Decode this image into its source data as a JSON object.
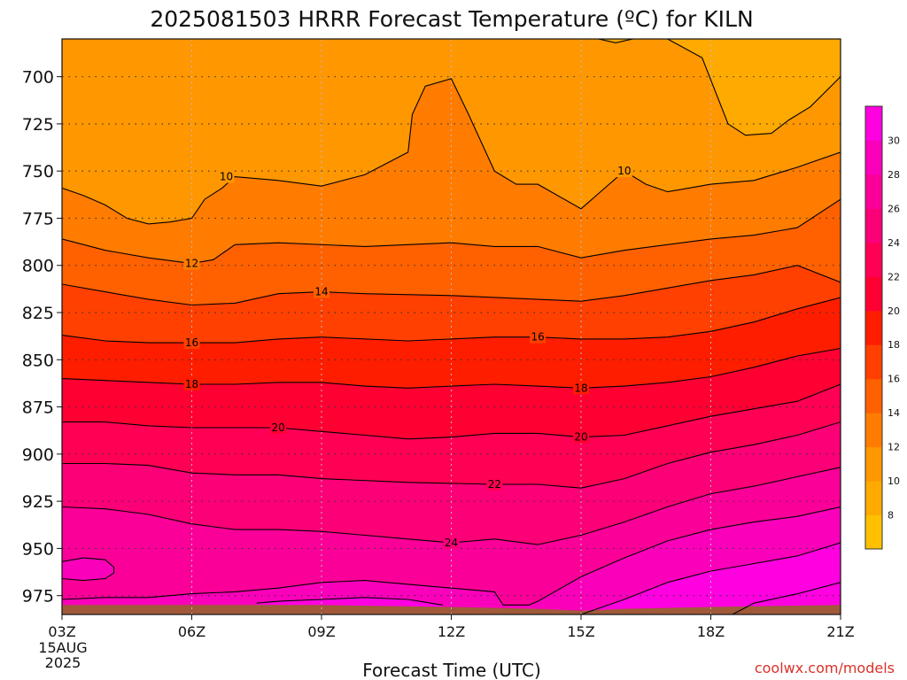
{
  "chart_data": {
    "type": "contour",
    "title": "2025081503 HRRR Forecast Temperature (ºC) for KILN",
    "xlabel": "Forecast Time (UTC)",
    "x_ticks": [
      "03Z",
      "06Z",
      "09Z",
      "12Z",
      "15Z",
      "18Z",
      "21Z"
    ],
    "x_date_lines": [
      "15AUG",
      "2025"
    ],
    "xlim": [
      3,
      21
    ],
    "ylabel": "",
    "y_ticks": [
      700,
      725,
      750,
      775,
      800,
      825,
      850,
      875,
      900,
      925,
      950,
      975
    ],
    "ylim": [
      680,
      985
    ],
    "y_inverted": true,
    "units": "ºC",
    "contour_interval": 2,
    "grid": true,
    "colorbar": {
      "ticks": [
        8,
        10,
        12,
        14,
        16,
        18,
        20,
        22,
        24,
        26,
        28,
        30
      ],
      "colors": [
        "#ffc000",
        "#ffaa00",
        "#ff9700",
        "#ff7c00",
        "#ff6000",
        "#ff4000",
        "#ff1d00",
        "#ff0033",
        "#ff0055",
        "#fb0077",
        "#fb0099",
        "#fb00bb",
        "#ff00e0"
      ]
    },
    "ground_color": "#a05a3a",
    "contours": [
      {
        "level": 10,
        "label": "10",
        "points": [
          [
            3,
            759
          ],
          [
            3.5,
            763
          ],
          [
            4,
            768
          ],
          [
            4.5,
            775
          ],
          [
            5,
            778
          ],
          [
            5.5,
            777
          ],
          [
            6,
            775
          ],
          [
            6.3,
            765
          ],
          [
            6.7,
            759
          ],
          [
            7,
            753
          ],
          [
            8,
            755
          ],
          [
            9,
            758
          ],
          [
            10,
            752
          ],
          [
            11,
            740
          ],
          [
            11.1,
            720
          ],
          [
            11.4,
            705
          ],
          [
            12,
            701
          ],
          [
            12.4,
            720
          ],
          [
            13,
            750
          ],
          [
            13.5,
            757
          ],
          [
            14,
            757
          ],
          [
            15,
            770
          ],
          [
            15.5,
            760
          ],
          [
            16,
            750
          ],
          [
            16.5,
            757
          ],
          [
            17,
            761
          ],
          [
            18,
            757
          ],
          [
            19,
            755
          ],
          [
            20,
            748
          ],
          [
            21,
            740
          ]
        ]
      },
      {
        "level": 8,
        "label": "",
        "points": [
          [
            15.4,
            680
          ],
          [
            15.8,
            682
          ],
          [
            16.2,
            680
          ],
          [
            17,
            680
          ],
          [
            17.8,
            690
          ],
          [
            18.4,
            725
          ],
          [
            18.8,
            731
          ],
          [
            19.4,
            730
          ],
          [
            19.8,
            723
          ],
          [
            20.3,
            716
          ],
          [
            21,
            700
          ]
        ]
      },
      {
        "level": 12,
        "label": "12",
        "points": [
          [
            3,
            786
          ],
          [
            4,
            792
          ],
          [
            5,
            796
          ],
          [
            6,
            799
          ],
          [
            6.5,
            797
          ],
          [
            7,
            789
          ],
          [
            8,
            788
          ],
          [
            10,
            790
          ],
          [
            11,
            789
          ],
          [
            12,
            788
          ],
          [
            13,
            790
          ],
          [
            14,
            790
          ],
          [
            15,
            796
          ],
          [
            16,
            792
          ],
          [
            18,
            786
          ],
          [
            19,
            784
          ],
          [
            20,
            780
          ],
          [
            21,
            765
          ]
        ]
      },
      {
        "level": 14,
        "label": "14",
        "points": [
          [
            3,
            810
          ],
          [
            4,
            814
          ],
          [
            5,
            818
          ],
          [
            6,
            821
          ],
          [
            7,
            820
          ],
          [
            8,
            815
          ],
          [
            9,
            814
          ],
          [
            10,
            815
          ],
          [
            12,
            816
          ],
          [
            14,
            818
          ],
          [
            15,
            819
          ],
          [
            16,
            816
          ],
          [
            17,
            812
          ],
          [
            18,
            808
          ],
          [
            19,
            805
          ],
          [
            20,
            800
          ],
          [
            21,
            809
          ]
        ]
      },
      {
        "level": 16,
        "label": "16",
        "points": [
          [
            3,
            837
          ],
          [
            4,
            840
          ],
          [
            5,
            841
          ],
          [
            6,
            841
          ],
          [
            7,
            841
          ],
          [
            8,
            839
          ],
          [
            9,
            838
          ],
          [
            11,
            840
          ],
          [
            13,
            838
          ],
          [
            14,
            838
          ],
          [
            15,
            839
          ],
          [
            16,
            839
          ],
          [
            17,
            838
          ],
          [
            18,
            835
          ],
          [
            19,
            830
          ],
          [
            20,
            823
          ],
          [
            21,
            817
          ]
        ]
      },
      {
        "level": 18,
        "label": "18",
        "points": [
          [
            3,
            860
          ],
          [
            4,
            861
          ],
          [
            5,
            862
          ],
          [
            6,
            863
          ],
          [
            7,
            863
          ],
          [
            8,
            862
          ],
          [
            9,
            862
          ],
          [
            10,
            864
          ],
          [
            11,
            865
          ],
          [
            12,
            864
          ],
          [
            13,
            863
          ],
          [
            14,
            864
          ],
          [
            15,
            865
          ],
          [
            16,
            864
          ],
          [
            17,
            862
          ],
          [
            18,
            859
          ],
          [
            19,
            854
          ],
          [
            20,
            848
          ],
          [
            21,
            844
          ]
        ]
      },
      {
        "level": 20,
        "label": "20",
        "points": [
          [
            3,
            883
          ],
          [
            4,
            883
          ],
          [
            5,
            885
          ],
          [
            6,
            886
          ],
          [
            7,
            886
          ],
          [
            8,
            886
          ],
          [
            9,
            888
          ],
          [
            10,
            890
          ],
          [
            11,
            892
          ],
          [
            12,
            891
          ],
          [
            13,
            889
          ],
          [
            14,
            889
          ],
          [
            15,
            891
          ],
          [
            16,
            890
          ],
          [
            17,
            885
          ],
          [
            18,
            880
          ],
          [
            19,
            876
          ],
          [
            20,
            872
          ],
          [
            21,
            863
          ]
        ]
      },
      {
        "level": 22,
        "label": "22",
        "points": [
          [
            3,
            905
          ],
          [
            4,
            905
          ],
          [
            5,
            906
          ],
          [
            6,
            910
          ],
          [
            7,
            911
          ],
          [
            8,
            911
          ],
          [
            9,
            913
          ],
          [
            11,
            915
          ],
          [
            13,
            916
          ],
          [
            14,
            916
          ],
          [
            15,
            918
          ],
          [
            16,
            913
          ],
          [
            17,
            905
          ],
          [
            18,
            899
          ],
          [
            19,
            895
          ],
          [
            20,
            890
          ],
          [
            21,
            883
          ]
        ]
      },
      {
        "level": 24,
        "label": "24",
        "points": [
          [
            3,
            928
          ],
          [
            4,
            929
          ],
          [
            5,
            932
          ],
          [
            6,
            937
          ],
          [
            7,
            940
          ],
          [
            8,
            940
          ],
          [
            9,
            941
          ],
          [
            10,
            943
          ],
          [
            11,
            945
          ],
          [
            12,
            947
          ],
          [
            13,
            945
          ],
          [
            14,
            948
          ],
          [
            15,
            943
          ],
          [
            16,
            936
          ],
          [
            17,
            928
          ],
          [
            18,
            921
          ],
          [
            19,
            917
          ],
          [
            20,
            912
          ],
          [
            21,
            907
          ]
        ]
      },
      {
        "level": 26,
        "label": "",
        "points": [
          [
            3,
            957
          ],
          [
            3.5,
            955
          ],
          [
            4,
            956
          ],
          [
            4.2,
            960
          ],
          [
            4.2,
            963
          ],
          [
            4,
            966
          ],
          [
            3.5,
            967
          ],
          [
            3,
            966
          ]
        ]
      },
      {
        "level": 26,
        "label": "",
        "points": [
          [
            3,
            977
          ],
          [
            4,
            976
          ],
          [
            5,
            976
          ],
          [
            6,
            974
          ],
          [
            7,
            973
          ],
          [
            8,
            971
          ],
          [
            9,
            968
          ],
          [
            10,
            967
          ],
          [
            11,
            969
          ],
          [
            12,
            971
          ],
          [
            13,
            973
          ],
          [
            13.2,
            980
          ],
          [
            13.8,
            980
          ],
          [
            14,
            978
          ],
          [
            15,
            965
          ],
          [
            16,
            955
          ],
          [
            17,
            946
          ],
          [
            18,
            940
          ],
          [
            19,
            936
          ],
          [
            20,
            933
          ],
          [
            21,
            928
          ]
        ]
      },
      {
        "level": 28,
        "label": "",
        "points": [
          [
            7.5,
            979
          ],
          [
            8,
            978
          ],
          [
            9,
            977
          ],
          [
            10,
            976
          ],
          [
            11,
            977
          ],
          [
            11.8,
            980
          ]
        ]
      },
      {
        "level": 28,
        "label": "",
        "points": [
          [
            15,
            985
          ],
          [
            16,
            977
          ],
          [
            17,
            968
          ],
          [
            18,
            962
          ],
          [
            19,
            958
          ],
          [
            20,
            954
          ],
          [
            21,
            947
          ]
        ]
      },
      {
        "level": 30,
        "label": "",
        "points": [
          [
            18.5,
            985
          ],
          [
            19,
            979
          ],
          [
            20,
            974
          ],
          [
            21,
            968
          ]
        ]
      }
    ],
    "label_positions": [
      {
        "text": "10",
        "x": 6.8,
        "y": 753
      },
      {
        "text": "10",
        "x": 16.0,
        "y": 750
      },
      {
        "text": "12",
        "x": 6.0,
        "y": 799
      },
      {
        "text": "14",
        "x": 9.0,
        "y": 814
      },
      {
        "text": "16",
        "x": 6.0,
        "y": 841
      },
      {
        "text": "16",
        "x": 14.0,
        "y": 838
      },
      {
        "text": "18",
        "x": 6.0,
        "y": 863
      },
      {
        "text": "18",
        "x": 15.0,
        "y": 865
      },
      {
        "text": "20",
        "x": 8.0,
        "y": 886
      },
      {
        "text": "20",
        "x": 15.0,
        "y": 891
      },
      {
        "text": "22",
        "x": 13.0,
        "y": 916
      },
      {
        "text": "24",
        "x": 12.0,
        "y": 947
      }
    ]
  },
  "credit": "coolwx.com/models"
}
